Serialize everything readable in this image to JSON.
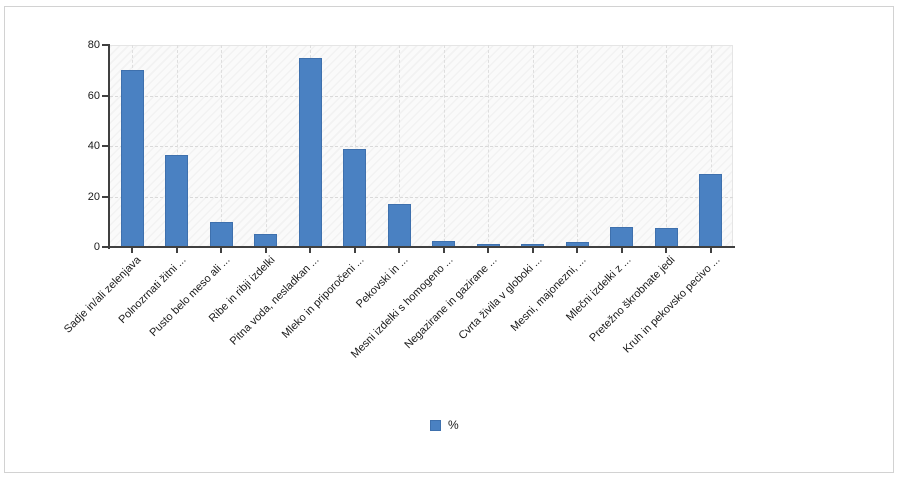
{
  "chart_data": {
    "type": "bar",
    "categories": [
      "Sadje in/ali zelenjava",
      "Polnozrnati žitni ...",
      "Pusto belo meso ali ...",
      "Ribe in ribji izdelki",
      "Pitna voda, nesladkan ...",
      "Mleko in priporočeni ...",
      "Pekovski in ...",
      "Mesni izdelki s homogeno ...",
      "Negazirane in gazirane ...",
      "Cvrta živila v globoki ...",
      "Mesni, majonezni, ...",
      "Mlečni izdelki z ...",
      "Pretežno škrobnate jedi",
      "Kruh in pekovsko pecivo ..."
    ],
    "values": [
      70,
      36.5,
      10,
      5,
      75,
      39,
      17,
      2.5,
      1,
      1,
      2,
      8,
      7.5,
      29
    ],
    "title": "",
    "xlabel": "",
    "ylabel": "",
    "ylim": [
      0,
      80
    ],
    "yticks": [
      0,
      20,
      40,
      60,
      80
    ],
    "grid": true,
    "legend_position": "bottom"
  },
  "legend": {
    "entries": [
      {
        "label": "%",
        "color": "#4a81c2"
      }
    ]
  },
  "colors": {
    "bar": "#4a81c2",
    "bar_border": "#3e70ad",
    "axis": "#404040",
    "grid": "#d9d9d9",
    "text": "#1a1a1a",
    "plot_background": "#fafafa",
    "frame_border": "#d2d2d2"
  }
}
